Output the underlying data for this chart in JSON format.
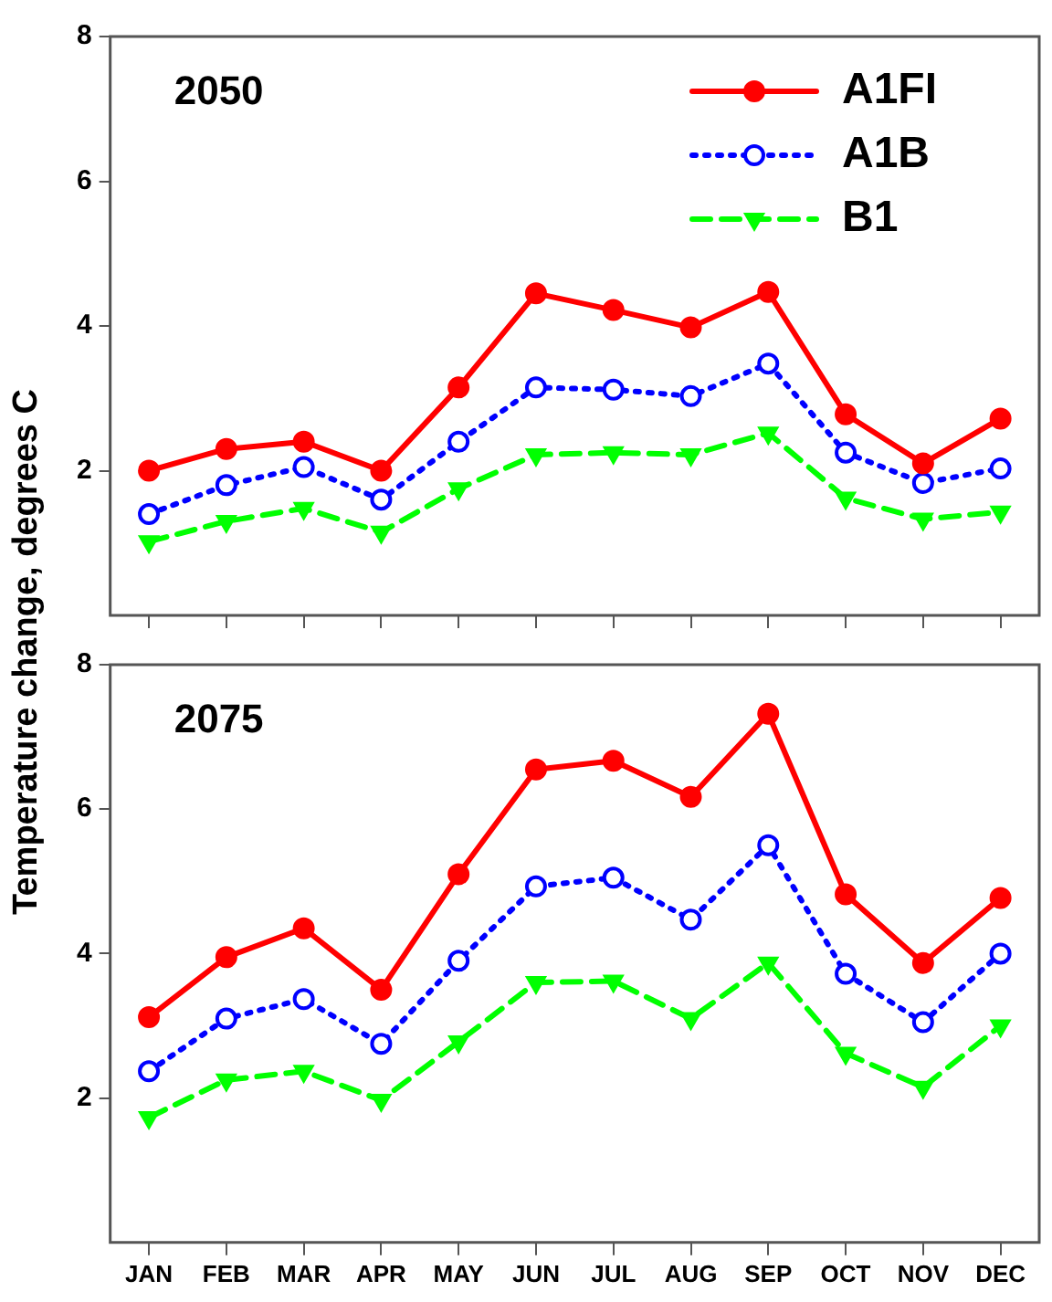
{
  "chart_data": [
    {
      "type": "line",
      "title": "2050",
      "ylabel": "Temperature change, degrees C",
      "categories": [
        null,
        null,
        null,
        null,
        null,
        null,
        null,
        null,
        null,
        null,
        null,
        null
      ],
      "ylim": [
        0,
        8
      ],
      "yticks": [
        2,
        4,
        6,
        8
      ],
      "grid": false,
      "legend": "top right",
      "tick_labels": "y",
      "series": [
        {
          "name": "A1FI",
          "color": "#ff0000",
          "marker": "circle",
          "line_style": "solid",
          "values": [
            2.0,
            2.3,
            2.4,
            2.0,
            3.15,
            4.45,
            4.22,
            3.98,
            4.47,
            2.78,
            2.1,
            2.72
          ]
        },
        {
          "name": "A1B",
          "color": "#0000ff",
          "marker": "circle",
          "line_style": "dotted",
          "values": [
            1.4,
            1.8,
            2.05,
            1.6,
            2.4,
            3.15,
            3.12,
            3.03,
            3.48,
            2.25,
            1.83,
            2.03
          ]
        },
        {
          "name": "B1",
          "color": "#00ff00",
          "marker": "triangle",
          "line_style": "dashed",
          "values": [
            1.02,
            1.3,
            1.48,
            1.15,
            1.75,
            2.22,
            2.25,
            2.22,
            2.52,
            1.62,
            1.33,
            1.43
          ]
        }
      ]
    },
    {
      "type": "line",
      "title": "2075",
      "categories": [
        "JAN",
        "FEB",
        "MAR",
        "APR",
        "MAY",
        "JUN",
        "JUL",
        "AUG",
        "SEP",
        "OCT",
        "NOV",
        "DEC"
      ],
      "ylim": [
        0,
        8
      ],
      "yticks": [
        2,
        4,
        6,
        8
      ],
      "grid": false,
      "legend": false,
      "series": [
        {
          "color": "#ff0000",
          "marker": "circle",
          "line_style": "solid",
          "values": [
            3.12,
            3.95,
            4.35,
            3.5,
            5.1,
            6.55,
            6.67,
            6.17,
            7.32,
            4.82,
            3.87,
            4.77
          ]
        },
        {
          "color": "#0000ff",
          "marker": "circle",
          "line_style": "dotted",
          "values": [
            2.37,
            3.1,
            3.37,
            2.75,
            3.9,
            4.93,
            5.05,
            4.47,
            5.5,
            3.72,
            3.05,
            4.0
          ]
        },
        {
          "color": "#00ff00",
          "marker": "triangle",
          "line_style": "dashed",
          "values": [
            1.73,
            2.25,
            2.37,
            1.97,
            2.78,
            3.6,
            3.62,
            3.1,
            3.87,
            2.62,
            2.15,
            3.0
          ]
        }
      ]
    }
  ]
}
